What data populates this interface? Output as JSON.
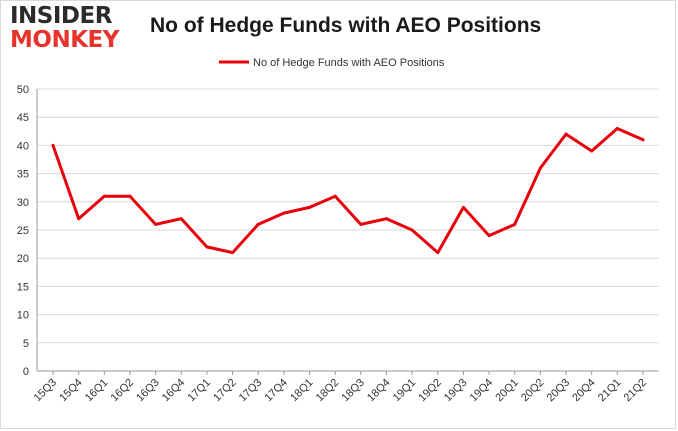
{
  "logo": {
    "line1": "INSIDER",
    "line2": "MONKEY"
  },
  "chart_data": {
    "type": "line",
    "title": "No of Hedge Funds with AEO Positions",
    "categories": [
      "15Q3",
      "15Q4",
      "16Q1",
      "16Q2",
      "16Q3",
      "16Q4",
      "17Q1",
      "17Q2",
      "17Q3",
      "17Q4",
      "18Q1",
      "18Q2",
      "18Q3",
      "18Q4",
      "19Q1",
      "19Q2",
      "19Q3",
      "19Q4",
      "20Q1",
      "20Q2",
      "20Q3",
      "20Q4",
      "21Q1",
      "21Q2"
    ],
    "series": [
      {
        "name": "No of Hedge Funds with AEO Positions",
        "values": [
          40,
          27,
          31,
          31,
          26,
          27,
          22,
          21,
          26,
          28,
          29,
          31,
          26,
          27,
          25,
          21,
          29,
          24,
          26,
          36,
          42,
          39,
          43,
          41
        ]
      }
    ],
    "ylim": [
      0,
      50
    ],
    "yticks": [
      0,
      5,
      10,
      15,
      20,
      25,
      30,
      35,
      40,
      45,
      50
    ],
    "grid": true,
    "legend": "top-center",
    "color": "#e8000b"
  }
}
